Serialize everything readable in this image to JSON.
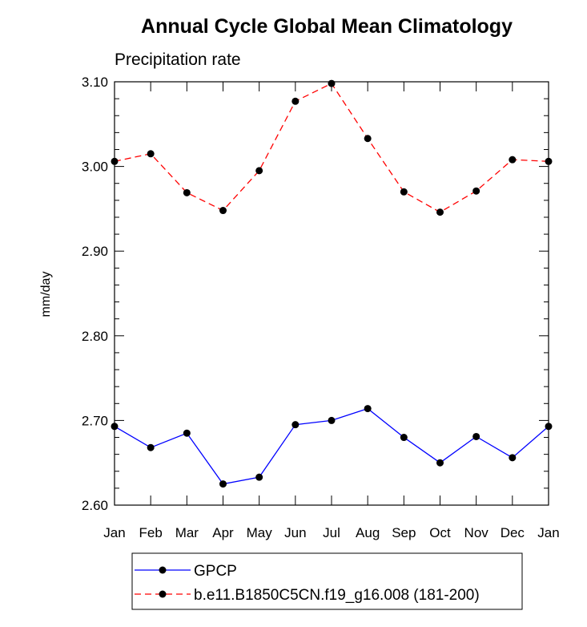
{
  "chart_data": {
    "type": "line",
    "title": "Annual Cycle Global Mean Climatology",
    "subtitle": "Precipitation rate",
    "xlabel": "",
    "ylabel": "mm/day",
    "ylim": [
      2.6,
      3.1
    ],
    "yticks": [
      "2.60",
      "2.70",
      "2.80",
      "2.90",
      "3.00",
      "3.10"
    ],
    "categories": [
      "Jan",
      "Feb",
      "Mar",
      "Apr",
      "May",
      "Jun",
      "Jul",
      "Aug",
      "Sep",
      "Oct",
      "Nov",
      "Dec",
      "Jan"
    ],
    "series": [
      {
        "name": "GPCP",
        "color": "#0000ff",
        "dashed": false,
        "values": [
          2.693,
          2.668,
          2.685,
          2.625,
          2.633,
          2.695,
          2.7,
          2.714,
          2.68,
          2.65,
          2.681,
          2.656,
          2.693
        ]
      },
      {
        "name": "b.e11.B1850C5CN.f19_g16.008 (181-200)",
        "color": "#ff0000",
        "dashed": true,
        "values": [
          3.006,
          3.015,
          2.969,
          2.948,
          2.995,
          3.077,
          3.098,
          3.033,
          2.97,
          2.946,
          2.971,
          3.008,
          3.006
        ]
      }
    ],
    "grid": false,
    "legend_position": "bottom"
  }
}
